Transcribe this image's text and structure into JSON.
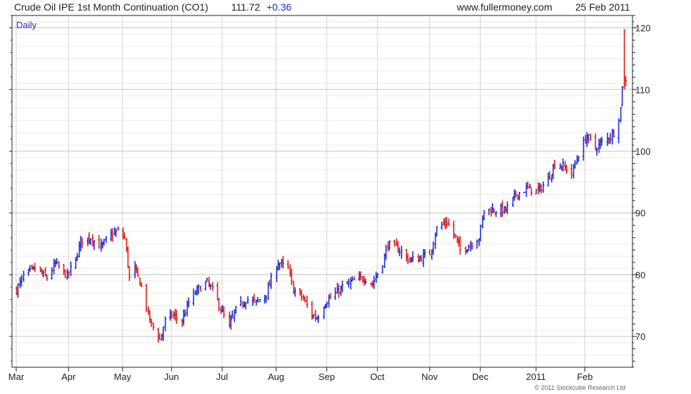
{
  "header": {
    "title": "Crude Oil IPE 1st Month Continuation (CO1)",
    "last": "111.72",
    "change": "+0.36",
    "site": "www.fullermoney.com",
    "date": "25 Feb 2011"
  },
  "footer": {
    "copyright": "© 2011 Stockcube Research Ltd"
  },
  "colors": {
    "up": "#1a2ad6",
    "down": "#e01818",
    "grid": "#d4d4d4",
    "accent": "#1a2cc8"
  },
  "chart_data": {
    "type": "candlestick",
    "period_label": "Daily",
    "y_axis": {
      "range": [
        65,
        122
      ],
      "ticks": [
        70,
        80,
        90,
        100,
        110,
        120
      ],
      "side": "right"
    },
    "x_axis": {
      "range": [
        "2010-03-01",
        "2011-02-25"
      ],
      "ticks": [
        "Mar",
        "Apr",
        "May",
        "Jun",
        "Jul",
        "Aug",
        "Sep",
        "Oct",
        "Nov",
        "Dec",
        "2011",
        "Feb"
      ]
    },
    "grid": true,
    "close_path": [
      [
        "2010-03-01",
        77.5
      ],
      [
        "2010-03-05",
        79.8
      ],
      [
        "2010-03-12",
        81.0
      ],
      [
        "2010-03-19",
        79.5
      ],
      [
        "2010-03-24",
        81.8
      ],
      [
        "2010-03-31",
        79.8
      ],
      [
        "2010-04-05",
        82.5
      ],
      [
        "2010-04-08",
        85.5
      ],
      [
        "2010-04-14",
        86.0
      ],
      [
        "2010-04-20",
        84.5
      ],
      [
        "2010-04-26",
        86.5
      ],
      [
        "2010-04-30",
        87.0
      ],
      [
        "2010-05-04",
        86.0
      ],
      [
        "2010-05-07",
        79.5
      ],
      [
        "2010-05-10",
        81.0
      ],
      [
        "2010-05-14",
        78.0
      ],
      [
        "2010-05-19",
        72.5
      ],
      [
        "2010-05-25",
        69.5
      ],
      [
        "2010-05-28",
        72.5
      ],
      [
        "2010-06-01",
        73.5
      ],
      [
        "2010-06-07",
        72.5
      ],
      [
        "2010-06-11",
        75.5
      ],
      [
        "2010-06-16",
        77.5
      ],
      [
        "2010-06-22",
        78.8
      ],
      [
        "2010-06-25",
        77.5
      ],
      [
        "2010-06-30",
        74.5
      ],
      [
        "2010-07-05",
        71.5
      ],
      [
        "2010-07-08",
        74.0
      ],
      [
        "2010-07-15",
        76.0
      ],
      [
        "2010-07-21",
        75.5
      ],
      [
        "2010-07-27",
        77.0
      ],
      [
        "2010-08-03",
        82.0
      ],
      [
        "2010-08-09",
        81.0
      ],
      [
        "2010-08-12",
        77.5
      ],
      [
        "2010-08-17",
        76.5
      ],
      [
        "2010-08-23",
        73.5
      ],
      [
        "2010-08-26",
        73.0
      ],
      [
        "2010-08-31",
        75.5
      ],
      [
        "2010-09-06",
        77.0
      ],
      [
        "2010-09-10",
        78.0
      ],
      [
        "2010-09-17",
        79.0
      ],
      [
        "2010-09-23",
        79.5
      ],
      [
        "2010-09-28",
        78.5
      ],
      [
        "2010-10-04",
        82.0
      ],
      [
        "2010-10-07",
        85.0
      ],
      [
        "2010-10-14",
        84.0
      ],
      [
        "2010-10-19",
        82.5
      ],
      [
        "2010-10-25",
        82.5
      ],
      [
        "2010-11-01",
        83.5
      ],
      [
        "2010-11-05",
        87.5
      ],
      [
        "2010-11-11",
        88.5
      ],
      [
        "2010-11-16",
        86.0
      ],
      [
        "2010-11-19",
        84.0
      ],
      [
        "2010-11-23",
        84.5
      ],
      [
        "2010-11-30",
        86.0
      ],
      [
        "2010-12-03",
        90.5
      ],
      [
        "2010-12-10",
        90.5
      ],
      [
        "2010-12-16",
        90.5
      ],
      [
        "2010-12-22",
        93.0
      ],
      [
        "2010-12-29",
        94.0
      ],
      [
        "2011-01-04",
        93.5
      ],
      [
        "2011-01-10",
        95.5
      ],
      [
        "2011-01-14",
        98.0
      ],
      [
        "2011-01-19",
        97.5
      ],
      [
        "2011-01-24",
        96.5
      ],
      [
        "2011-01-28",
        99.5
      ],
      [
        "2011-02-02",
        102.5
      ],
      [
        "2011-02-07",
        100.5
      ],
      [
        "2011-02-11",
        101.5
      ],
      [
        "2011-02-16",
        102.5
      ],
      [
        "2011-02-18",
        103.0
      ],
      [
        "2011-02-21",
        105.5
      ],
      [
        "2011-02-22",
        107.0
      ],
      [
        "2011-02-23",
        110.8
      ],
      [
        "2011-02-24",
        111.4
      ],
      [
        "2011-02-25",
        111.72
      ]
    ],
    "notable_bars": [
      {
        "date": "2011-02-24",
        "high": 119.8,
        "low": 110.0,
        "color": "down"
      }
    ]
  }
}
